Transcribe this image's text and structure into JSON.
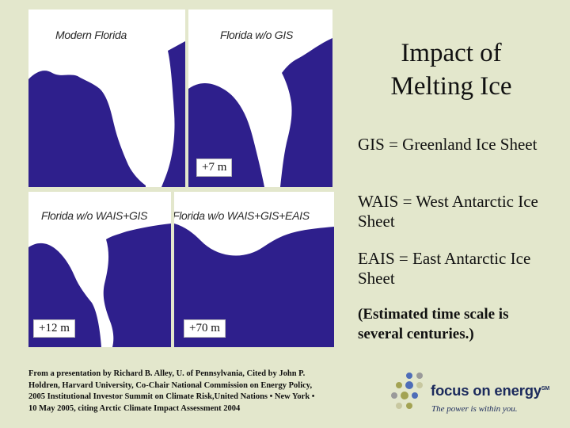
{
  "slide": {
    "title_line1": "Impact of",
    "title_line2": "Melting Ice"
  },
  "maps": {
    "modern_title": "Modern Florida",
    "no_gis_title": "Florida w/o GIS",
    "no_wais_title": "Florida w/o WAIS+GIS",
    "no_eais_title": "Florida w/o WAIS+GIS+EAIS",
    "rise_7": "+7 m",
    "rise_12": "+12 m",
    "rise_70": "+70 m"
  },
  "definitions": {
    "gis": "GIS = Greenland Ice Sheet",
    "wais": "WAIS = West Antarctic Ice Sheet",
    "eais": "EAIS = East Antarctic Ice Sheet"
  },
  "note": "(Estimated time scale is several centuries.)",
  "source": {
    "line1": "From a presentation by Richard B. Alley, U. of Pennsylvania, Cited by John P.",
    "line2": "Holdren, Harvard University, Co-Chair National Commission on Energy Policy,",
    "line3": "2005 Institutional Investor Summit on Climate Risk,United Nations • New York •",
    "line4": "10 May 2005, citing Arctic Climate Impact Assessment 2004"
  },
  "logo": {
    "name": "focus on energy",
    "tm": "SM",
    "tagline": "The power is within you."
  },
  "colors": {
    "background": "#e3e7cc",
    "land": "#ffffff",
    "water": "#2e1f8c",
    "text": "#111111",
    "logo_navy": "#1b2a5c",
    "dot_blue": "#4e6db8",
    "dot_olive": "#a3a353",
    "dot_gray": "#9a9a9a",
    "dot_light": "#c8c8a0"
  }
}
